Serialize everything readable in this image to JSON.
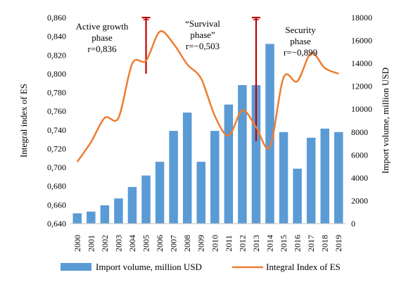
{
  "chart_data": {
    "type": "bar",
    "categories": [
      "2000",
      "2001",
      "2002",
      "2003",
      "2004",
      "2005",
      "2006",
      "2007",
      "2008",
      "2009",
      "2010",
      "2011",
      "2012",
      "2013",
      "2014",
      "2015",
      "2016",
      "2017",
      "2018",
      "2019"
    ],
    "series": [
      {
        "name": "Import volume, million USD",
        "kind": "bar",
        "axis": "right",
        "color": "#5b9bd5",
        "values": [
          900,
          1050,
          1600,
          2200,
          3200,
          4200,
          5400,
          8100,
          9700,
          5400,
          8100,
          10400,
          12100,
          12100,
          15700,
          8000,
          4800,
          7500,
          8300,
          8000
        ]
      },
      {
        "name": "Integral Index of ES",
        "kind": "line",
        "axis": "left",
        "color": "#ed7d31",
        "values": [
          0.706,
          0.727,
          0.753,
          0.753,
          0.811,
          0.814,
          0.845,
          0.832,
          0.81,
          0.795,
          0.755,
          0.734,
          0.761,
          0.743,
          0.722,
          0.796,
          0.792,
          0.822,
          0.806,
          0.8
        ]
      }
    ],
    "ylabel": "Integral index of ES",
    "y2label": "Import volume, million USD",
    "ylim": [
      0.64,
      0.86
    ],
    "y2lim": [
      0,
      18000
    ],
    "yticks": [
      "0,640",
      "0,660",
      "0,680",
      "0,700",
      "0,720",
      "0,740",
      "0,760",
      "0,780",
      "0,800",
      "0,820",
      "0,840",
      "0,860"
    ],
    "y2ticks": [
      "0",
      "2000",
      "4000",
      "6000",
      "8000",
      "10000",
      "12000",
      "14000",
      "16000",
      "18000"
    ],
    "grid": false,
    "legend_position": "bottom",
    "markers": [
      {
        "category": "2005",
        "top": 0.86,
        "bottom": 0.8,
        "color": "#c00000"
      },
      {
        "category": "2013",
        "top": 0.86,
        "bottom": 0.728,
        "color": "#c00000"
      }
    ],
    "annotations": [
      {
        "lines": [
          "Active growth",
          "phase",
          "r=0,836"
        ]
      },
      {
        "lines": [
          "“Survival",
          "phase”",
          "r=−0,503"
        ]
      },
      {
        "lines": [
          "Security",
          "phase",
          "r=−0,899"
        ]
      }
    ]
  }
}
